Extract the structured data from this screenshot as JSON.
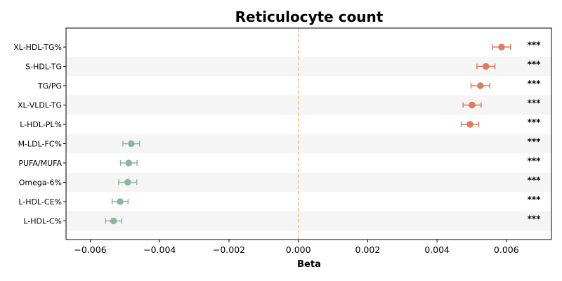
{
  "chart_data": {
    "type": "scatter",
    "title": "Reticulocyte count",
    "xlabel": "Beta",
    "ylabel": "",
    "xlim": [
      -0.0067,
      0.0073
    ],
    "xticks": [
      -0.006,
      -0.004,
      -0.002,
      0.0,
      0.002,
      0.004,
      0.006
    ],
    "xtick_labels": [
      "−0.006",
      "−0.004",
      "−0.002",
      "0.000",
      "0.002",
      "0.004",
      "0.006"
    ],
    "reference_line": 0.0,
    "categories": [
      "XL-HDL-TG%",
      "S-HDL-TG",
      "TG/PG",
      "XL-VLDL-TG",
      "L-HDL-PL%",
      "M-LDL-FC%",
      "PUFA/MUFA",
      "Omega-6%",
      "L-HDL-CE%",
      "L-HDL-C%"
    ],
    "beta": [
      0.00586,
      0.00541,
      0.00525,
      0.00501,
      0.00495,
      -0.00482,
      -0.00489,
      -0.00492,
      -0.00514,
      -0.00533
    ],
    "ci_low": [
      0.0056,
      0.00515,
      0.00498,
      0.00475,
      0.0047,
      -0.00506,
      -0.00513,
      -0.00518,
      -0.00537,
      -0.00556
    ],
    "ci_high": [
      0.00612,
      0.00567,
      0.00552,
      0.00527,
      0.0052,
      -0.00458,
      -0.00465,
      -0.00466,
      -0.00491,
      -0.0051
    ],
    "significance": [
      "***",
      "***",
      "***",
      "***",
      "***",
      "***",
      "***",
      "***",
      "***",
      "***"
    ],
    "grid": false,
    "alternating_row_shading": true,
    "colors": {
      "positive": "#e07b62",
      "negative": "#8ab59e",
      "reference_line": "#f5c48a",
      "row_shade": "#f5f5f5"
    }
  }
}
